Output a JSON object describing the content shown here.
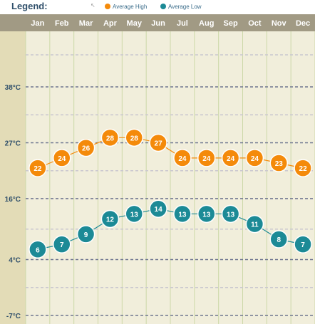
{
  "legend": {
    "title": "Legend:",
    "high_label": "Average High",
    "low_label": "Average Low",
    "high_color": "#f48a0a",
    "low_color": "#1c8a96"
  },
  "chart_data": {
    "type": "line",
    "categories": [
      "Jan",
      "Feb",
      "Mar",
      "Apr",
      "May",
      "Jun",
      "Jul",
      "Aug",
      "Sep",
      "Oct",
      "Nov",
      "Dec"
    ],
    "series": [
      {
        "name": "Average High",
        "color": "#f48a0a",
        "values": [
          22,
          24,
          26,
          28,
          28,
          27,
          24,
          24,
          24,
          24,
          23,
          22
        ]
      },
      {
        "name": "Average Low",
        "color": "#1c8a96",
        "values": [
          6,
          7,
          9,
          12,
          13,
          14,
          13,
          13,
          13,
          11,
          8,
          7
        ]
      }
    ],
    "y_ticks": [
      {
        "value": 38,
        "label": "38°C"
      },
      {
        "value": 27,
        "label": "27°C"
      },
      {
        "value": 16,
        "label": "16°C"
      },
      {
        "value": 4,
        "label": "4°C"
      },
      {
        "value": -7,
        "label": "-7°C"
      }
    ],
    "ylim": [
      -7,
      38
    ],
    "grid": true,
    "legend_position": "top"
  }
}
